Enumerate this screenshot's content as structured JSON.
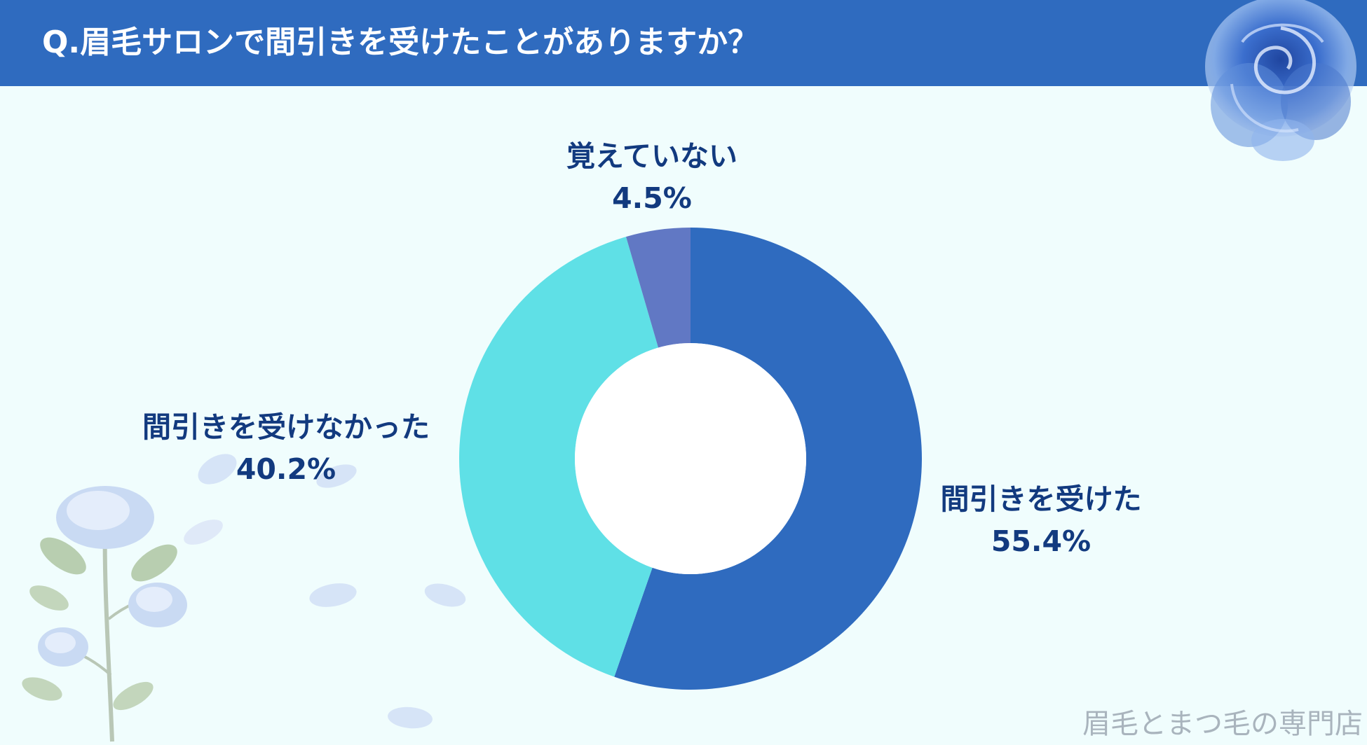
{
  "header": {
    "title": "Q.眉毛サロンで間引きを受けたことがありますか？"
  },
  "chart_data": {
    "type": "pie",
    "donut": true,
    "title": "",
    "slices": [
      {
        "label": "間引きを受けた",
        "value": 55.4,
        "value_label": "55.4%",
        "color": "#2f6bbf"
      },
      {
        "label": "間引きを受けなかった",
        "value": 40.2,
        "value_label": "40.2%",
        "color": "#5fe0e6"
      },
      {
        "label": "覚えていない",
        "value": 4.5,
        "value_label": "4.5%",
        "color": "#6178c4"
      }
    ],
    "start_angle": "top, clockwise",
    "legend": "none"
  },
  "decorations": {
    "top_right": "blue-rose-icon",
    "bottom_left": "rose-branch-icon",
    "petals": "petal-icon"
  },
  "footer": {
    "watermark": "眉毛とまつ毛の専門店"
  }
}
